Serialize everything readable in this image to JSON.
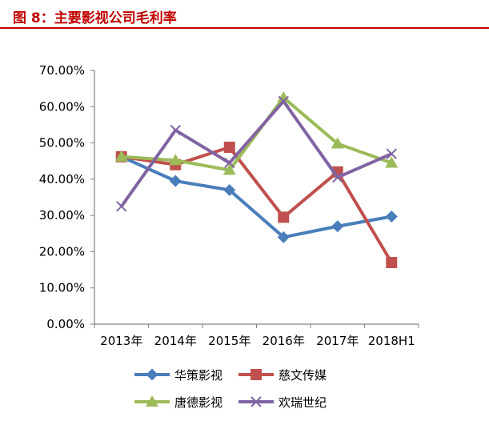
{
  "figure": {
    "title": "图 8：主要影视公司毛利率",
    "title_color": "#c00000"
  },
  "chart_data": {
    "type": "line",
    "categories": [
      "2013年",
      "2014年",
      "2015年",
      "2016年",
      "2017年",
      "2018H1"
    ],
    "y_ticks": [
      "0.00%",
      "10.00%",
      "20.00%",
      "30.00%",
      "40.00%",
      "50.00%",
      "60.00%",
      "70.00%"
    ],
    "ylim": [
      0,
      0.7
    ],
    "y_format": "percent",
    "grid": false,
    "legend_position": "bottom",
    "series": [
      {
        "name": "华策影视",
        "color": "#4a7ebb",
        "marker": "diamond",
        "values": [
          0.462,
          0.395,
          0.37,
          0.24,
          0.27,
          0.297
        ]
      },
      {
        "name": "慈文传媒",
        "color": "#c0504d",
        "marker": "square",
        "values": [
          0.462,
          0.44,
          0.488,
          0.295,
          0.42,
          0.17
        ]
      },
      {
        "name": "唐德影视",
        "color": "#9bbb59",
        "marker": "triangle",
        "values": [
          0.462,
          0.452,
          0.425,
          0.625,
          0.498,
          0.445
        ]
      },
      {
        "name": "欢瑞世纪",
        "color": "#8064a2",
        "marker": "x",
        "values": [
          0.325,
          0.535,
          0.445,
          0.615,
          0.405,
          0.47
        ]
      }
    ]
  }
}
